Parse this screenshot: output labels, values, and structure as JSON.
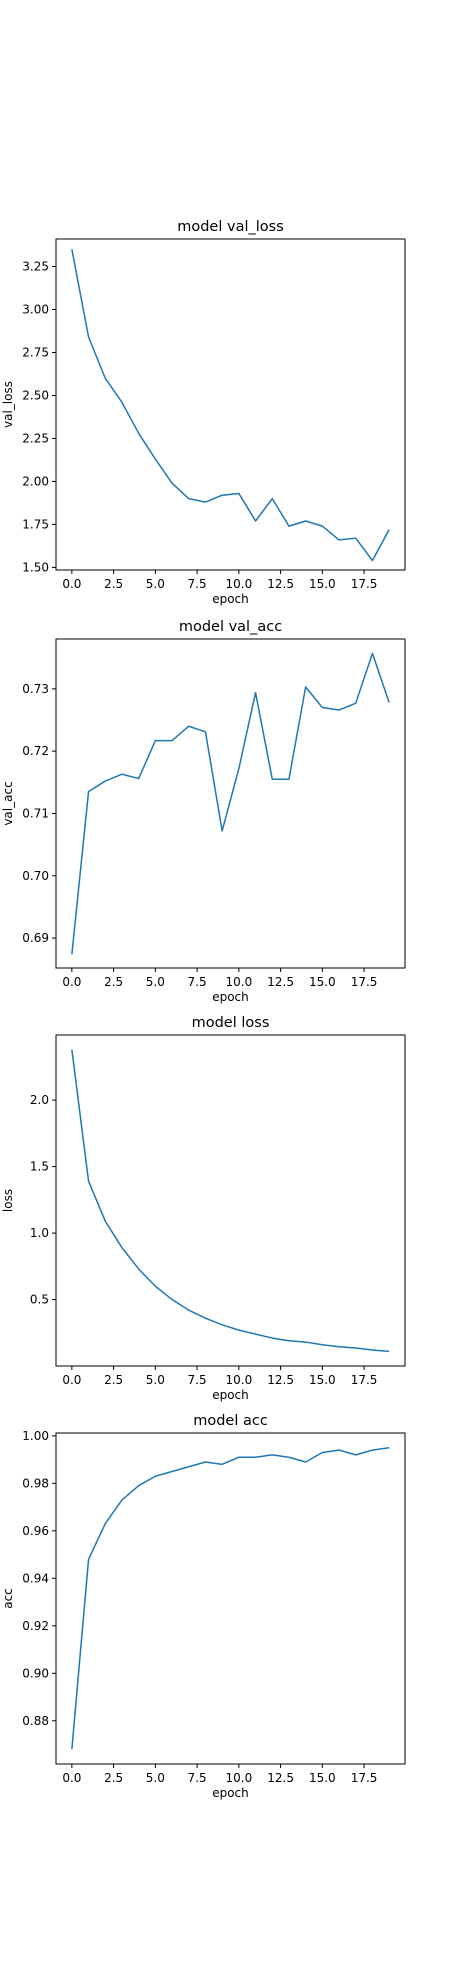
{
  "chart_data": [
    {
      "type": "line",
      "title": "model val_loss",
      "xlabel": "epoch",
      "ylabel": "val_loss",
      "x": [
        0,
        1,
        2,
        3,
        4,
        5,
        6,
        7,
        8,
        9,
        10,
        11,
        12,
        13,
        14,
        15,
        16,
        17,
        18,
        19
      ],
      "series": [
        {
          "values": [
            3.35,
            2.84,
            2.6,
            2.46,
            2.28,
            2.13,
            1.99,
            1.9,
            1.88,
            1.92,
            1.93,
            1.77,
            1.9,
            1.74,
            1.77,
            1.74,
            1.66,
            1.67,
            1.54,
            1.72
          ]
        }
      ],
      "xlim": [
        -0.95,
        19.95
      ],
      "ylim": [
        1.485,
        3.41
      ],
      "xticks": [
        0,
        2.5,
        5,
        7.5,
        10,
        12.5,
        15,
        17.5
      ],
      "xtick_labels": [
        "0.0",
        "2.5",
        "5.0",
        "7.5",
        "10.0",
        "12.5",
        "15.0",
        "17.5"
      ],
      "yticks": [
        1.5,
        1.75,
        2.0,
        2.25,
        2.5,
        2.75,
        3.0,
        3.25
      ],
      "ytick_labels": [
        "1.50",
        "1.75",
        "2.00",
        "2.25",
        "2.50",
        "2.75",
        "3.00",
        "3.25"
      ],
      "line_color": "#1f77b4",
      "legend": "none",
      "grid": false
    },
    {
      "type": "line",
      "title": "model val_acc",
      "xlabel": "epoch",
      "ylabel": "val_acc",
      "x": [
        0,
        1,
        2,
        3,
        4,
        5,
        6,
        7,
        8,
        9,
        10,
        11,
        12,
        13,
        14,
        15,
        16,
        17,
        18,
        19
      ],
      "series": [
        {
          "values": [
            0.6874,
            0.7135,
            0.7152,
            0.7163,
            0.7156,
            0.7217,
            0.7217,
            0.724,
            0.7231,
            0.7072,
            0.7172,
            0.7294,
            0.7155,
            0.7155,
            0.7303,
            0.727,
            0.7266,
            0.7277,
            0.7357,
            0.7278
          ]
        }
      ],
      "xlim": [
        -0.95,
        19.95
      ],
      "ylim": [
        0.6852,
        0.738
      ],
      "xticks": [
        0,
        2.5,
        5,
        7.5,
        10,
        12.5,
        15,
        17.5
      ],
      "xtick_labels": [
        "0.0",
        "2.5",
        "5.0",
        "7.5",
        "10.0",
        "12.5",
        "15.0",
        "17.5"
      ],
      "yticks": [
        0.69,
        0.7,
        0.71,
        0.72,
        0.73
      ],
      "ytick_labels": [
        "0.69",
        "0.70",
        "0.71",
        "0.72",
        "0.73"
      ],
      "line_color": "#1f77b4",
      "legend": "none",
      "grid": false
    },
    {
      "type": "line",
      "title": "model loss",
      "xlabel": "epoch",
      "ylabel": "loss",
      "x": [
        0,
        1,
        2,
        3,
        4,
        5,
        6,
        7,
        8,
        9,
        10,
        11,
        12,
        13,
        14,
        15,
        16,
        17,
        18,
        19
      ],
      "series": [
        {
          "values": [
            2.38,
            1.39,
            1.09,
            0.89,
            0.73,
            0.6,
            0.5,
            0.42,
            0.36,
            0.31,
            0.27,
            0.24,
            0.21,
            0.19,
            0.18,
            0.16,
            0.145,
            0.135,
            0.12,
            0.11
          ]
        }
      ],
      "xlim": [
        -0.95,
        19.95
      ],
      "ylim": [
        0.0,
        2.49
      ],
      "xticks": [
        0,
        2.5,
        5,
        7.5,
        10,
        12.5,
        15,
        17.5
      ],
      "xtick_labels": [
        "0.0",
        "2.5",
        "5.0",
        "7.5",
        "10.0",
        "12.5",
        "15.0",
        "17.5"
      ],
      "yticks": [
        0.5,
        1.0,
        1.5,
        2.0
      ],
      "ytick_labels": [
        "0.5",
        "1.0",
        "1.5",
        "2.0"
      ],
      "line_color": "#1f77b4",
      "legend": "none",
      "grid": false
    },
    {
      "type": "line",
      "title": "model acc",
      "xlabel": "epoch",
      "ylabel": "acc",
      "x": [
        0,
        1,
        2,
        3,
        4,
        5,
        6,
        7,
        8,
        9,
        10,
        11,
        12,
        13,
        14,
        15,
        16,
        17,
        18,
        19
      ],
      "series": [
        {
          "values": [
            0.868,
            0.948,
            0.963,
            0.973,
            0.979,
            0.983,
            0.985,
            0.987,
            0.989,
            0.988,
            0.991,
            0.991,
            0.992,
            0.991,
            0.989,
            0.993,
            0.994,
            0.992,
            0.994,
            0.995
          ]
        }
      ],
      "xlim": [
        -0.95,
        19.95
      ],
      "ylim": [
        0.8618,
        1.0012
      ],
      "xticks": [
        0,
        2.5,
        5,
        7.5,
        10,
        12.5,
        15,
        17.5
      ],
      "xtick_labels": [
        "0.0",
        "2.5",
        "5.0",
        "7.5",
        "10.0",
        "12.5",
        "15.0",
        "17.5"
      ],
      "yticks": [
        0.88,
        0.9,
        0.92,
        0.94,
        0.96,
        0.98,
        1.0
      ],
      "ytick_labels": [
        "0.88",
        "0.90",
        "0.92",
        "0.94",
        "0.96",
        "0.98",
        "1.00"
      ],
      "line_color": "#1f77b4",
      "legend": "none",
      "grid": false
    }
  ]
}
